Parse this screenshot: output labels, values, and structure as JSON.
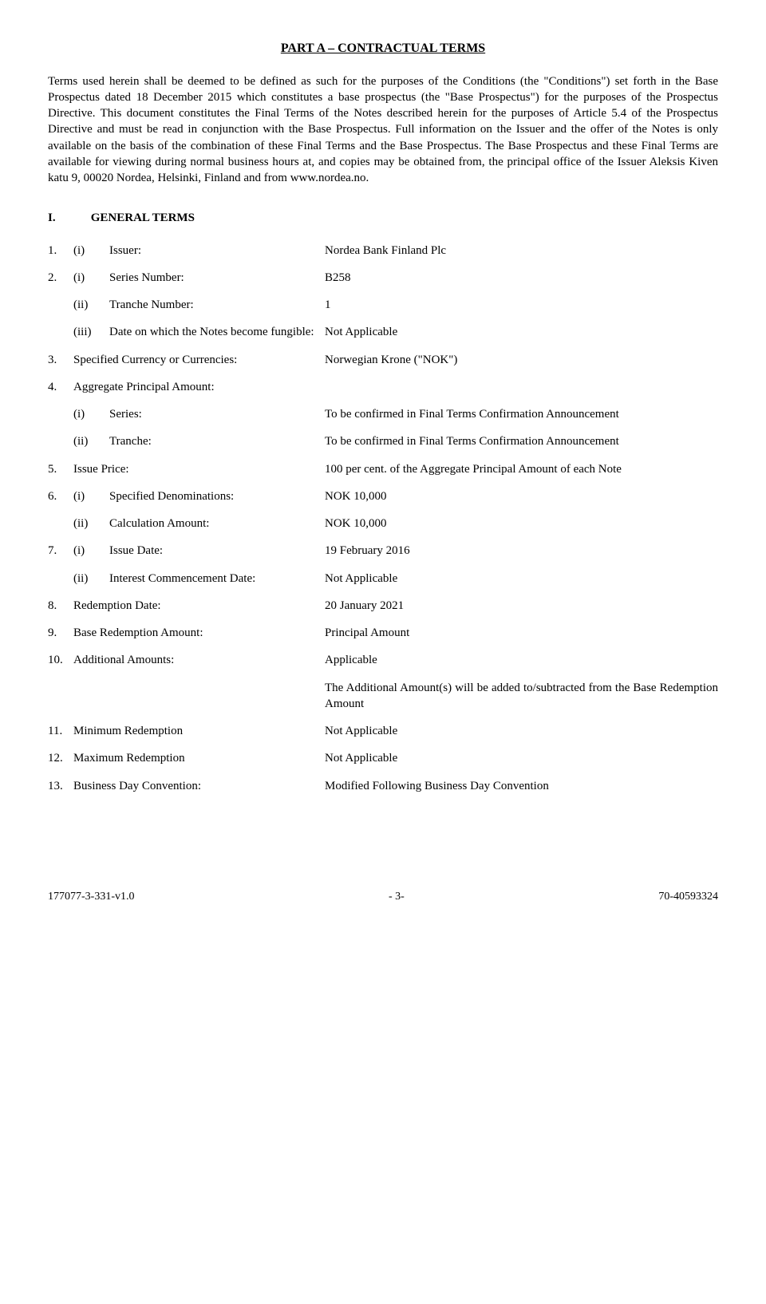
{
  "title": "PART A – CONTRACTUAL TERMS",
  "intro": "Terms used herein shall be deemed to be defined as such for the purposes of the Conditions (the \"Conditions\") set forth in the Base Prospectus dated 18 December 2015 which constitutes a base prospectus (the \"Base Prospectus\") for the purposes of the Prospectus Directive.  This document constitutes the Final Terms of the Notes described herein for the purposes of Article 5.4 of the Prospectus Directive and must be read in conjunction with the Base Prospectus. Full information on the Issuer and the offer of the Notes is only available on the basis of the combination of these Final Terms and the Base Prospectus. The Base Prospectus and these Final Terms are available for viewing during normal business hours at, and copies may be obtained from, the principal office of the Issuer Aleksis Kiven katu 9, 00020 Nordea, Helsinki, Finland and from www.nordea.no.",
  "section": {
    "num": "I.",
    "title": "GENERAL TERMS"
  },
  "r1": {
    "n": "1.",
    "s": "(i)",
    "l": "Issuer:",
    "v": "Nordea Bank Finland Plc"
  },
  "r2a": {
    "n": "2.",
    "s": "(i)",
    "l": "Series Number:",
    "v": "B258"
  },
  "r2b": {
    "n": "",
    "s": "(ii)",
    "l": "Tranche Number:",
    "v": "1"
  },
  "r2c": {
    "n": "",
    "s": "(iii)",
    "l": "Date on which the Notes become fungible:",
    "v": "Not Applicable"
  },
  "r3": {
    "n": "3.",
    "l": "Specified Currency or Currencies:",
    "v": "Norwegian Krone (\"NOK\")"
  },
  "r4": {
    "n": "4.",
    "l": "Aggregate Principal Amount:",
    "v": ""
  },
  "r4a": {
    "n": "",
    "s": "(i)",
    "l": "Series:",
    "v": "To be confirmed in Final Terms Confirmation Announcement"
  },
  "r4b": {
    "n": "",
    "s": "(ii)",
    "l": "Tranche:",
    "v": "To be confirmed in Final Terms Confirmation Announcement"
  },
  "r5": {
    "n": "5.",
    "l": "Issue Price:",
    "v": "100 per cent. of the Aggregate Principal Amount of each Note"
  },
  "r6a": {
    "n": "6.",
    "s": "(i)",
    "l": "Specified Denominations:",
    "v": "NOK 10,000"
  },
  "r6b": {
    "n": "",
    "s": "(ii)",
    "l": "Calculation Amount:",
    "v": "NOK 10,000"
  },
  "r7a": {
    "n": "7.",
    "s": "(i)",
    "l": "Issue Date:",
    "v": "19 February 2016"
  },
  "r7b": {
    "n": "",
    "s": "(ii)",
    "l": "Interest Commencement Date:",
    "v": "Not Applicable"
  },
  "r8": {
    "n": "8.",
    "l": "Redemption Date:",
    "v": "20 January 2021"
  },
  "r9": {
    "n": "9.",
    "l": "Base Redemption Amount:",
    "v": "Principal Amount"
  },
  "r10": {
    "n": "10.",
    "l": "Additional Amounts:",
    "v": "Applicable"
  },
  "r10x": {
    "v": "The Additional Amount(s) will be added to/subtracted from the Base Redemption Amount"
  },
  "r11": {
    "n": "11.",
    "l": "Minimum Redemption",
    "v": "Not Applicable"
  },
  "r12": {
    "n": "12.",
    "l": "Maximum Redemption",
    "v": "Not Applicable"
  },
  "r13": {
    "n": "13.",
    "l": "Business Day Convention:",
    "v": "Modified Following Business Day Convention"
  },
  "footer": {
    "left": "177077-3-331-v1.0",
    "page": "- 3-",
    "right": "70-40593324"
  }
}
